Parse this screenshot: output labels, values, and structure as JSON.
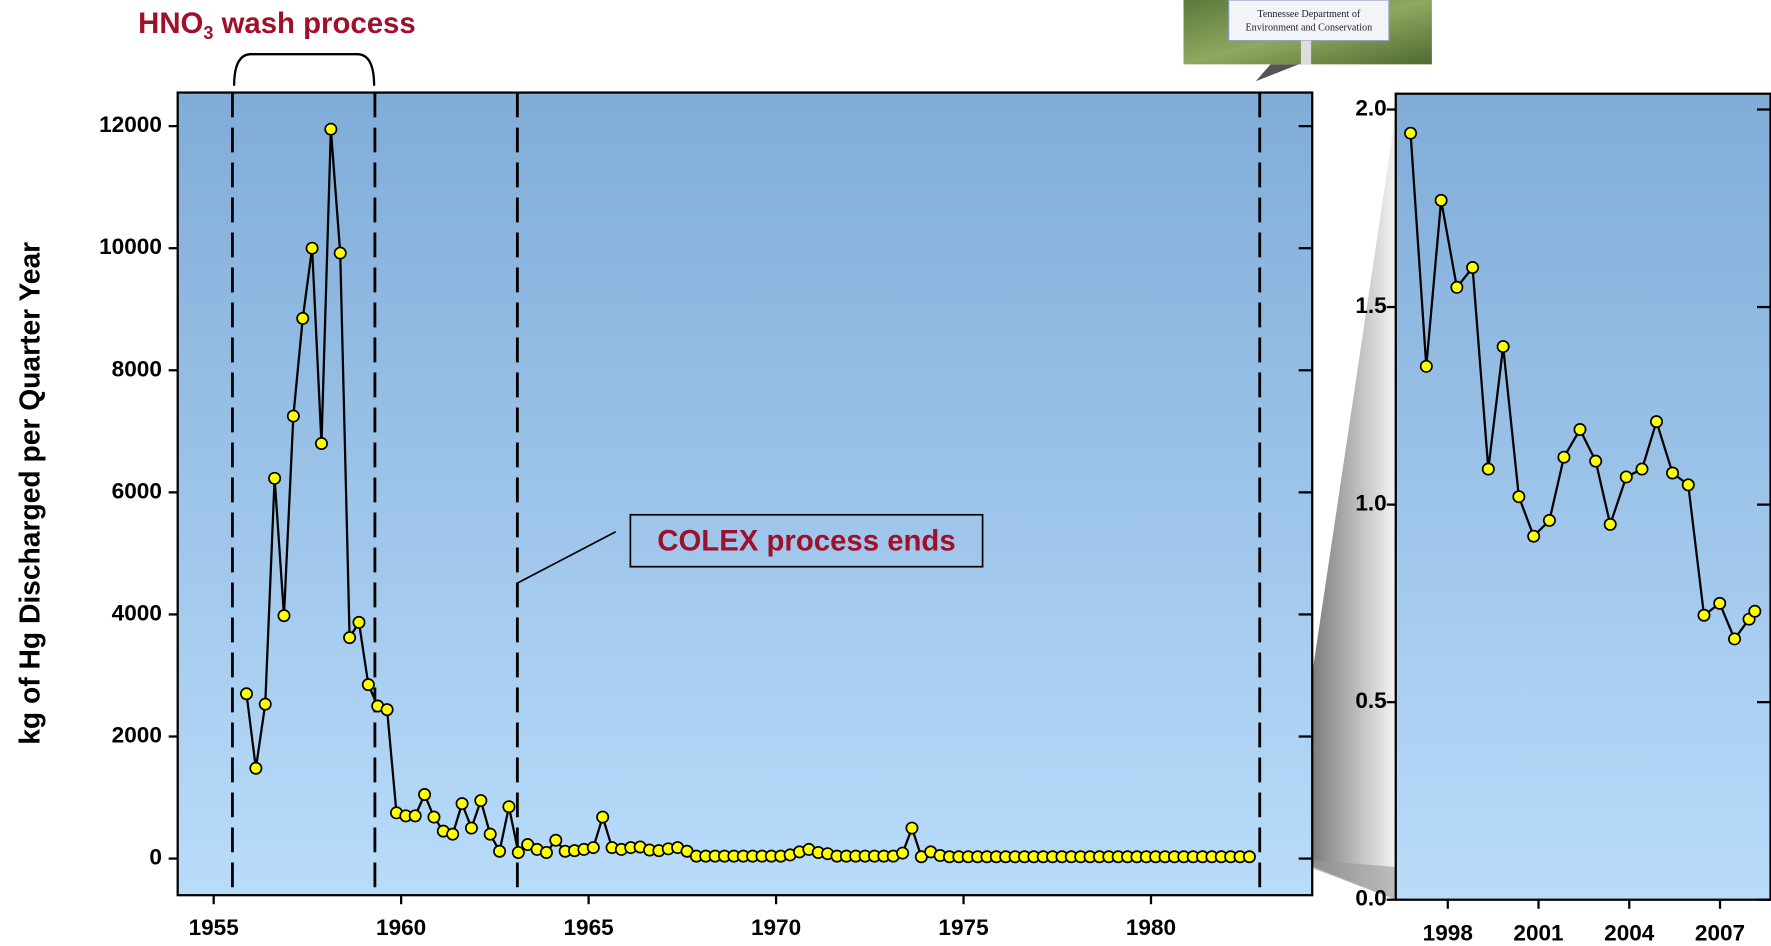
{
  "chart_data": [
    {
      "type": "line",
      "y_label": "kg of Hg Discharged per Quarter Year",
      "xlim": [
        1954.04,
        1984.3
      ],
      "ylim": [
        -600,
        12550
      ],
      "xticks": [
        1955,
        1960,
        1965,
        1970,
        1975,
        1980
      ],
      "yticks": [
        0,
        2000,
        4000,
        6000,
        8000,
        10000,
        12000
      ],
      "reference_lines": [
        1955.5,
        1959.3,
        1963.1,
        1982.9
      ],
      "annotations": {
        "hno3": {
          "prefix": "HNO",
          "subscript": "3",
          "suffix": " wash process"
        },
        "colex": "COLEX process ends"
      },
      "series": [
        {
          "color": "#ffff00",
          "x": [
            1955.875,
            1956.125,
            1956.375,
            1956.625,
            1956.875,
            1957.125,
            1957.375,
            1957.625,
            1957.875,
            1958.125,
            1958.375,
            1958.625,
            1958.875,
            1959.125,
            1959.375,
            1959.625,
            1959.875,
            1960.125,
            1960.375,
            1960.625,
            1960.875,
            1961.125,
            1961.375,
            1961.625,
            1961.875,
            1962.125,
            1962.375,
            1962.625,
            1962.875,
            1963.125,
            1963.375,
            1963.625,
            1963.875,
            1964.125,
            1964.375,
            1964.625,
            1964.875,
            1965.125,
            1965.375,
            1965.625,
            1965.875,
            1966.125,
            1966.375,
            1966.625,
            1966.875,
            1967.125,
            1967.375,
            1967.625,
            1967.875,
            1968.125,
            1968.375,
            1968.625,
            1968.875,
            1969.125,
            1969.375,
            1969.625,
            1969.875,
            1970.125,
            1970.375,
            1970.625,
            1970.875,
            1971.125,
            1971.375,
            1971.625,
            1971.875,
            1972.125,
            1972.375,
            1972.625,
            1972.875,
            1973.125,
            1973.375,
            1973.625,
            1973.875,
            1974.125,
            1974.375,
            1974.625,
            1974.875,
            1975.125,
            1975.375,
            1975.625,
            1975.875,
            1976.125,
            1976.375,
            1976.625,
            1976.875,
            1977.125,
            1977.375,
            1977.625,
            1977.875,
            1978.125,
            1978.375,
            1978.625,
            1978.875,
            1979.125,
            1979.375,
            1979.625,
            1979.875,
            1980.125,
            1980.375,
            1980.625,
            1980.875,
            1981.125,
            1981.375,
            1981.625,
            1981.875,
            1982.125,
            1982.375,
            1982.625
          ],
          "values": [
            2700,
            1480,
            2530,
            6230,
            3980,
            7250,
            8850,
            10000,
            6800,
            11950,
            9920,
            3620,
            3870,
            2850,
            2500,
            2440,
            750,
            700,
            700,
            1050,
            680,
            450,
            400,
            900,
            500,
            950,
            400,
            120,
            850,
            100,
            230,
            150,
            100,
            300,
            120,
            130,
            150,
            180,
            680,
            180,
            150,
            180,
            190,
            140,
            130,
            160,
            180,
            120,
            40,
            40,
            40,
            40,
            40,
            40,
            40,
            40,
            40,
            40,
            60,
            110,
            150,
            100,
            80,
            40,
            40,
            40,
            40,
            40,
            40,
            40,
            90,
            500,
            30,
            110,
            50,
            30,
            30,
            30,
            30,
            30,
            30,
            30,
            30,
            30,
            30,
            30,
            30,
            30,
            30,
            30,
            30,
            30,
            30,
            30,
            30,
            30,
            30,
            30,
            30,
            30,
            30,
            30,
            30,
            30,
            30,
            30,
            30,
            30
          ]
        }
      ]
    },
    {
      "type": "line",
      "xlim": [
        1996.28,
        2008.67
      ],
      "ylim": [
        0,
        2.04
      ],
      "xticks": [
        1998,
        2001,
        2004,
        2007
      ],
      "yticks": [
        {
          "value": 0,
          "label": "0.0"
        },
        0.5,
        {
          "value": 1,
          "label": "1.0"
        },
        1.5,
        {
          "value": 2,
          "label": "2.0"
        }
      ],
      "series": [
        {
          "color": "#ffff00",
          "x": [
            1996.77,
            1997.29,
            1997.78,
            1998.3,
            1998.82,
            1999.34,
            1999.83,
            2000.35,
            2000.84,
            2001.36,
            2001.84,
            2002.37,
            2002.89,
            2003.37,
            2003.9,
            2004.42,
            2004.9,
            2005.43,
            2005.95,
            2006.47,
            2006.99,
            2007.48,
            2007.96,
            2008.15
          ],
          "values": [
            1.94,
            1.35,
            1.77,
            1.55,
            1.6,
            1.09,
            1.4,
            1.02,
            0.92,
            0.96,
            1.12,
            1.19,
            1.11,
            0.95,
            1.07,
            1.09,
            1.21,
            1.08,
            1.05,
            0.72,
            0.75,
            0.66,
            0.71,
            0.73
          ]
        }
      ]
    }
  ],
  "sign": {
    "line1": "Tennessee Department of",
    "line2": "Environment and Conservation"
  }
}
